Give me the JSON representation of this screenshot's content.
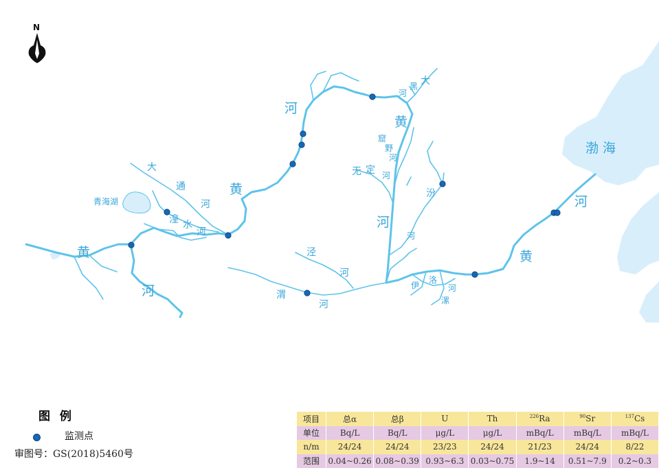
{
  "north_arrow": {
    "letter": "N"
  },
  "map": {
    "sea_name": "渤  海",
    "main_river_labels": [
      "黄",
      "河",
      "黄",
      "河",
      "黄",
      "河",
      "黄",
      "河"
    ],
    "lake_name": "青海湖",
    "tributary_labels": [
      "大",
      "通",
      "河",
      "湟",
      "水",
      "河",
      "大",
      "黑",
      "河",
      "窟",
      "野",
      "河",
      "无",
      "定",
      "河",
      "汾",
      "河",
      "泾",
      "河",
      "渭",
      "河",
      "伊",
      "洛",
      "河",
      "河",
      "漯"
    ],
    "river_color": "#5ec3ea",
    "sea_color": "#d9eefb",
    "station_color": "#1768b5",
    "monitoring_station_count": 12
  },
  "legend": {
    "title": "图  例",
    "items": [
      {
        "symbol": "blue-dot",
        "label": "监测点"
      }
    ]
  },
  "review_number": "审图号：GS(2018)5460号",
  "table": {
    "rows": [
      {
        "head": "项目",
        "cells": [
          "总α",
          "总β",
          "U",
          "Th",
          "Ra",
          "Sr",
          "Cs"
        ],
        "sups": [
          "",
          "",
          "",
          "",
          "226",
          "90",
          "137"
        ]
      },
      {
        "head": "单位",
        "cells": [
          "Bq/L",
          "Bq/L",
          "μg/L",
          "μg/L",
          "mBq/L",
          "mBq/L",
          "mBq/L"
        ]
      },
      {
        "head": "n/m",
        "cells": [
          "24/24",
          "24/24",
          "23/23",
          "24/24",
          "21/23",
          "24/24",
          "8/22"
        ]
      },
      {
        "head": "范围",
        "cells": [
          "0.04~0.26",
          "0.08~0.39",
          "0.93~6.3",
          "0.03~0.75",
          "1.9~14",
          "0.51~7.9",
          "0.2~0.3"
        ]
      }
    ]
  }
}
